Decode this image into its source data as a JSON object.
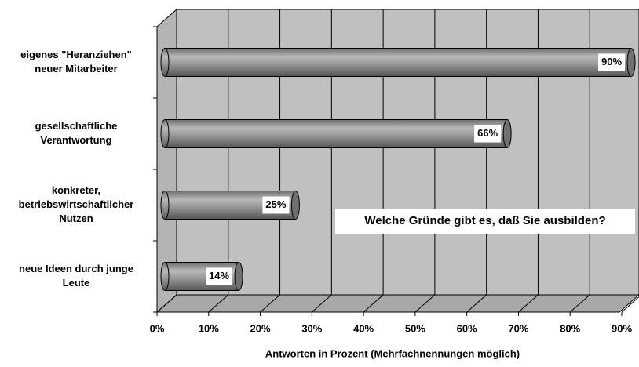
{
  "chart_data": {
    "type": "bar3d-horizontal",
    "annotation": "Welche Gründe gibt es, daß Sie ausbilden?",
    "xlabel": "Antworten in Prozent (Mehrfachnennungen möglich)",
    "categories": [
      [
        "eigenes \"Heranziehen\"",
        "neuer Mitarbeiter"
      ],
      [
        "gesellschaftliche",
        "Verantwortung"
      ],
      [
        "konkreter,",
        "betriebswirtschaftlicher",
        "Nutzen"
      ],
      [
        "neue Ideen durch junge",
        "Leute"
      ]
    ],
    "values": [
      90,
      66,
      25,
      14
    ],
    "value_labels": [
      "90%",
      "66%",
      "25%",
      "14%"
    ],
    "color": "#a0a0a0",
    "xlim": [
      0,
      90
    ],
    "xticks": [
      {
        "value": 0,
        "label": "0%"
      },
      {
        "value": 10,
        "label": "10%"
      },
      {
        "value": 20,
        "label": "20%"
      },
      {
        "value": 30,
        "label": "30%"
      },
      {
        "value": 40,
        "label": "40%"
      },
      {
        "value": 50,
        "label": "50%"
      },
      {
        "value": 60,
        "label": "60%"
      },
      {
        "value": 70,
        "label": "70%"
      },
      {
        "value": 80,
        "label": "80%"
      },
      {
        "value": 90,
        "label": "90%"
      }
    ],
    "grid": true
  }
}
